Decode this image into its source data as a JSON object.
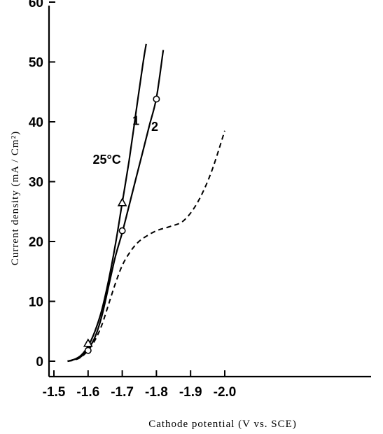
{
  "chart_data": {
    "type": "line",
    "xlabel": "Cathode potential (V vs. SCE)",
    "ylabel": "Current density (mA / Cm²)",
    "xlim": [
      -1.5,
      -2.0
    ],
    "ylim": [
      0,
      60
    ],
    "x_ticks": [
      -1.5,
      -1.6,
      -1.7,
      -1.8,
      -1.9,
      -2.0
    ],
    "x_tick_labels": [
      "-1.5",
      "-1.6",
      "-1.7",
      "-1.8",
      "-1.9",
      "-2.0"
    ],
    "y_ticks": [
      0,
      10,
      20,
      30,
      40,
      50,
      60
    ],
    "y_tick_labels": [
      "0",
      "10",
      "20",
      "30",
      "40",
      "50",
      "60"
    ],
    "grid": false,
    "series": [
      {
        "name": "1",
        "style": "solid",
        "x": [
          -1.54,
          -1.56,
          -1.58,
          -1.6,
          -1.62,
          -1.64,
          -1.66,
          -1.68,
          -1.7,
          -1.72,
          -1.74,
          -1.76,
          -1.77
        ],
        "y": [
          0,
          0.3,
          1.0,
          2.5,
          5.0,
          8.5,
          13.5,
          19.5,
          26.5,
          33.5,
          41.5,
          49.5,
          53
        ]
      },
      {
        "name": "2",
        "style": "solid",
        "x": [
          -1.54,
          -1.56,
          -1.58,
          -1.6,
          -1.62,
          -1.64,
          -1.66,
          -1.68,
          -1.7,
          -1.72,
          -1.74,
          -1.76,
          -1.78,
          -1.8,
          -1.82
        ],
        "y": [
          0,
          0.3,
          0.8,
          2.0,
          4.0,
          7.5,
          12.5,
          17.5,
          21.5,
          26.0,
          30.5,
          35.0,
          39.5,
          44.0,
          52
        ]
      },
      {
        "name": "",
        "style": "dashed",
        "x": [
          -1.54,
          -1.56,
          -1.58,
          -1.6,
          -1.62,
          -1.64,
          -1.66,
          -1.68,
          -1.7,
          -1.72,
          -1.74,
          -1.76,
          -1.8,
          -1.84,
          -1.88,
          -1.92,
          -1.96,
          -2.0
        ],
        "y": [
          0,
          0.2,
          0.7,
          1.8,
          3.5,
          6.0,
          9.5,
          13.0,
          16.0,
          18.0,
          19.5,
          20.5,
          21.8,
          22.5,
          23.5,
          26.5,
          31.5,
          38.5
        ]
      }
    ],
    "markers": [
      {
        "shape": "triangle",
        "x": -1.6,
        "y": 3.0
      },
      {
        "shape": "triangle",
        "x": -1.7,
        "y": 26.5
      },
      {
        "shape": "circle",
        "x": -1.6,
        "y": 1.8
      },
      {
        "shape": "circle",
        "x": -1.7,
        "y": 21.8
      },
      {
        "shape": "circle",
        "x": -1.8,
        "y": 43.8
      }
    ],
    "annotations": [
      {
        "text": "1",
        "x": -1.74,
        "y": 39.5
      },
      {
        "text": "2",
        "x": -1.795,
        "y": 38.5
      },
      {
        "text": "25°C",
        "x": -1.655,
        "y": 33
      }
    ]
  }
}
